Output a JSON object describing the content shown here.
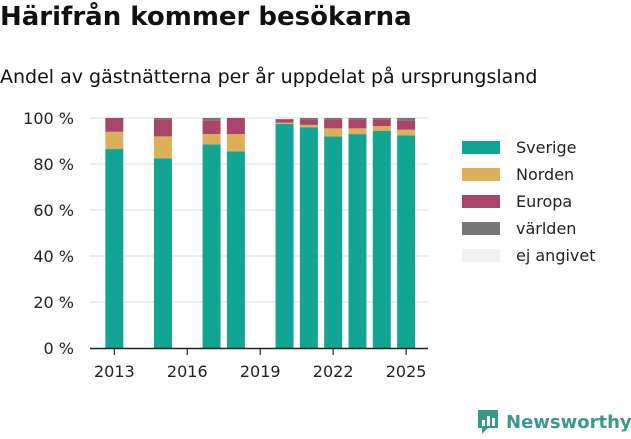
{
  "title": "Härifrån kommer besökarna",
  "subtitle": "Andel av gästnätterna per år uppdelat på ursprungsland",
  "brand": {
    "name": "Newsworthy",
    "icon": "newsworthy-logo-icon"
  },
  "colors": {
    "Sverige": "#12a594",
    "Norden": "#dcb05a",
    "Europa": "#a9456a",
    "världen": "#777777",
    "ej angivet": "#f2f2f2",
    "grid": "#dddddd",
    "axis": "#222222"
  },
  "chart_data": {
    "type": "bar",
    "stacked": true,
    "x": [
      2013,
      2015,
      2017,
      2018,
      2020,
      2021,
      2022,
      2023,
      2024,
      2025
    ],
    "series": [
      {
        "name": "Sverige",
        "values": [
          86.5,
          82.5,
          88.5,
          85.5,
          97.5,
          96.0,
          92.0,
          93.0,
          94.5,
          92.5
        ]
      },
      {
        "name": "Norden",
        "values": [
          7.5,
          9.5,
          4.5,
          7.5,
          0.5,
          1.0,
          3.5,
          2.5,
          2.0,
          2.5
        ]
      },
      {
        "name": "Europa",
        "values": [
          6.0,
          7.5,
          6.0,
          7.0,
          1.5,
          2.5,
          4.0,
          4.0,
          3.0,
          4.0
        ]
      },
      {
        "name": "världen",
        "values": [
          0.0,
          0.5,
          1.0,
          0.0,
          0.0,
          0.5,
          0.5,
          0.5,
          0.5,
          1.0
        ]
      },
      {
        "name": "ej angivet",
        "values": [
          0,
          0,
          0,
          0,
          0,
          0,
          0,
          0,
          0,
          0
        ]
      }
    ],
    "xticks": [
      2013,
      2016,
      2019,
      2022,
      2025
    ],
    "xlim": [
      2012.0,
      2025.9
    ],
    "yticks": [
      0,
      20,
      40,
      60,
      80,
      100
    ],
    "ytick_labels": [
      "0 %",
      "20 %",
      "40 %",
      "60 %",
      "80 %",
      "100 %"
    ],
    "ylim": [
      0,
      100
    ],
    "grid": true,
    "legend_position": "right"
  }
}
